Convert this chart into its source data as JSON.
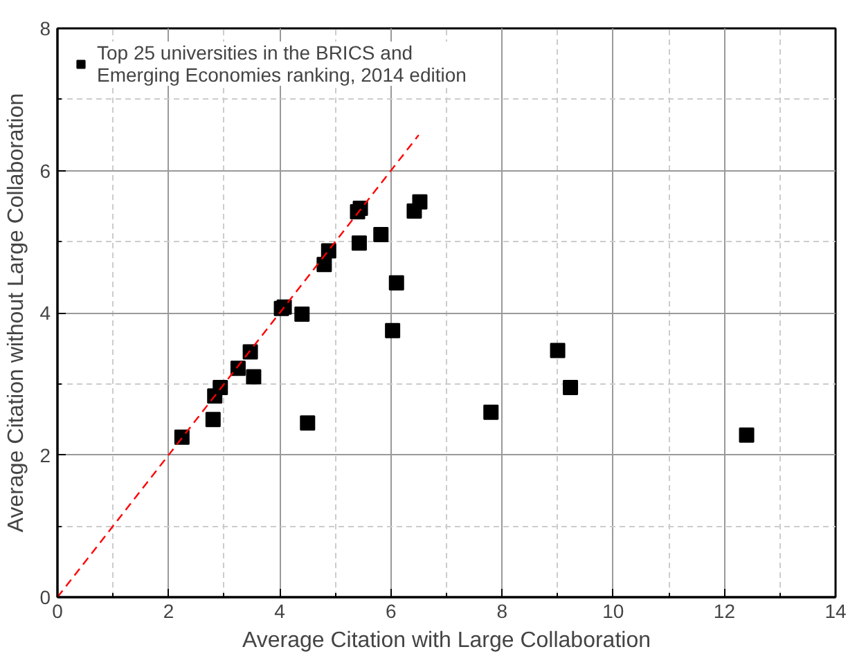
{
  "chart_data": {
    "type": "scatter",
    "xlabel": "Average Citation with Large Collaboration",
    "ylabel": "Average Citation without Large Collaboration",
    "xlim": [
      0,
      14
    ],
    "ylim": [
      0,
      8
    ],
    "xticks": [
      0,
      2,
      4,
      6,
      8,
      10,
      12,
      14
    ],
    "yticks": [
      0,
      2,
      4,
      6,
      8
    ],
    "grid": true,
    "legend": "top left",
    "series": [
      {
        "name": "Top 25 universities in the BRICS and Emerging Economies ranking, 2014 edition",
        "color": "#000000",
        "marker": "square",
        "x": [
          2.24,
          2.8,
          2.83,
          2.93,
          3.25,
          3.47,
          3.53,
          4.03,
          4.08,
          4.4,
          4.5,
          4.8,
          4.88,
          5.4,
          5.45,
          5.43,
          5.82,
          6.03,
          6.1,
          6.42,
          6.52,
          7.8,
          9.0,
          9.23,
          12.4
        ],
        "values": [
          2.25,
          2.5,
          2.83,
          2.95,
          3.22,
          3.45,
          3.1,
          4.06,
          4.08,
          3.98,
          2.45,
          4.68,
          4.87,
          5.42,
          5.47,
          4.98,
          5.1,
          3.75,
          4.42,
          5.43,
          5.56,
          2.6,
          3.47,
          2.95,
          2.28
        ]
      },
      {
        "type": "line",
        "color": "#ff0000",
        "line_style": "dashed",
        "x": [
          0,
          6.5
        ],
        "values": [
          0,
          6.5
        ]
      }
    ]
  }
}
